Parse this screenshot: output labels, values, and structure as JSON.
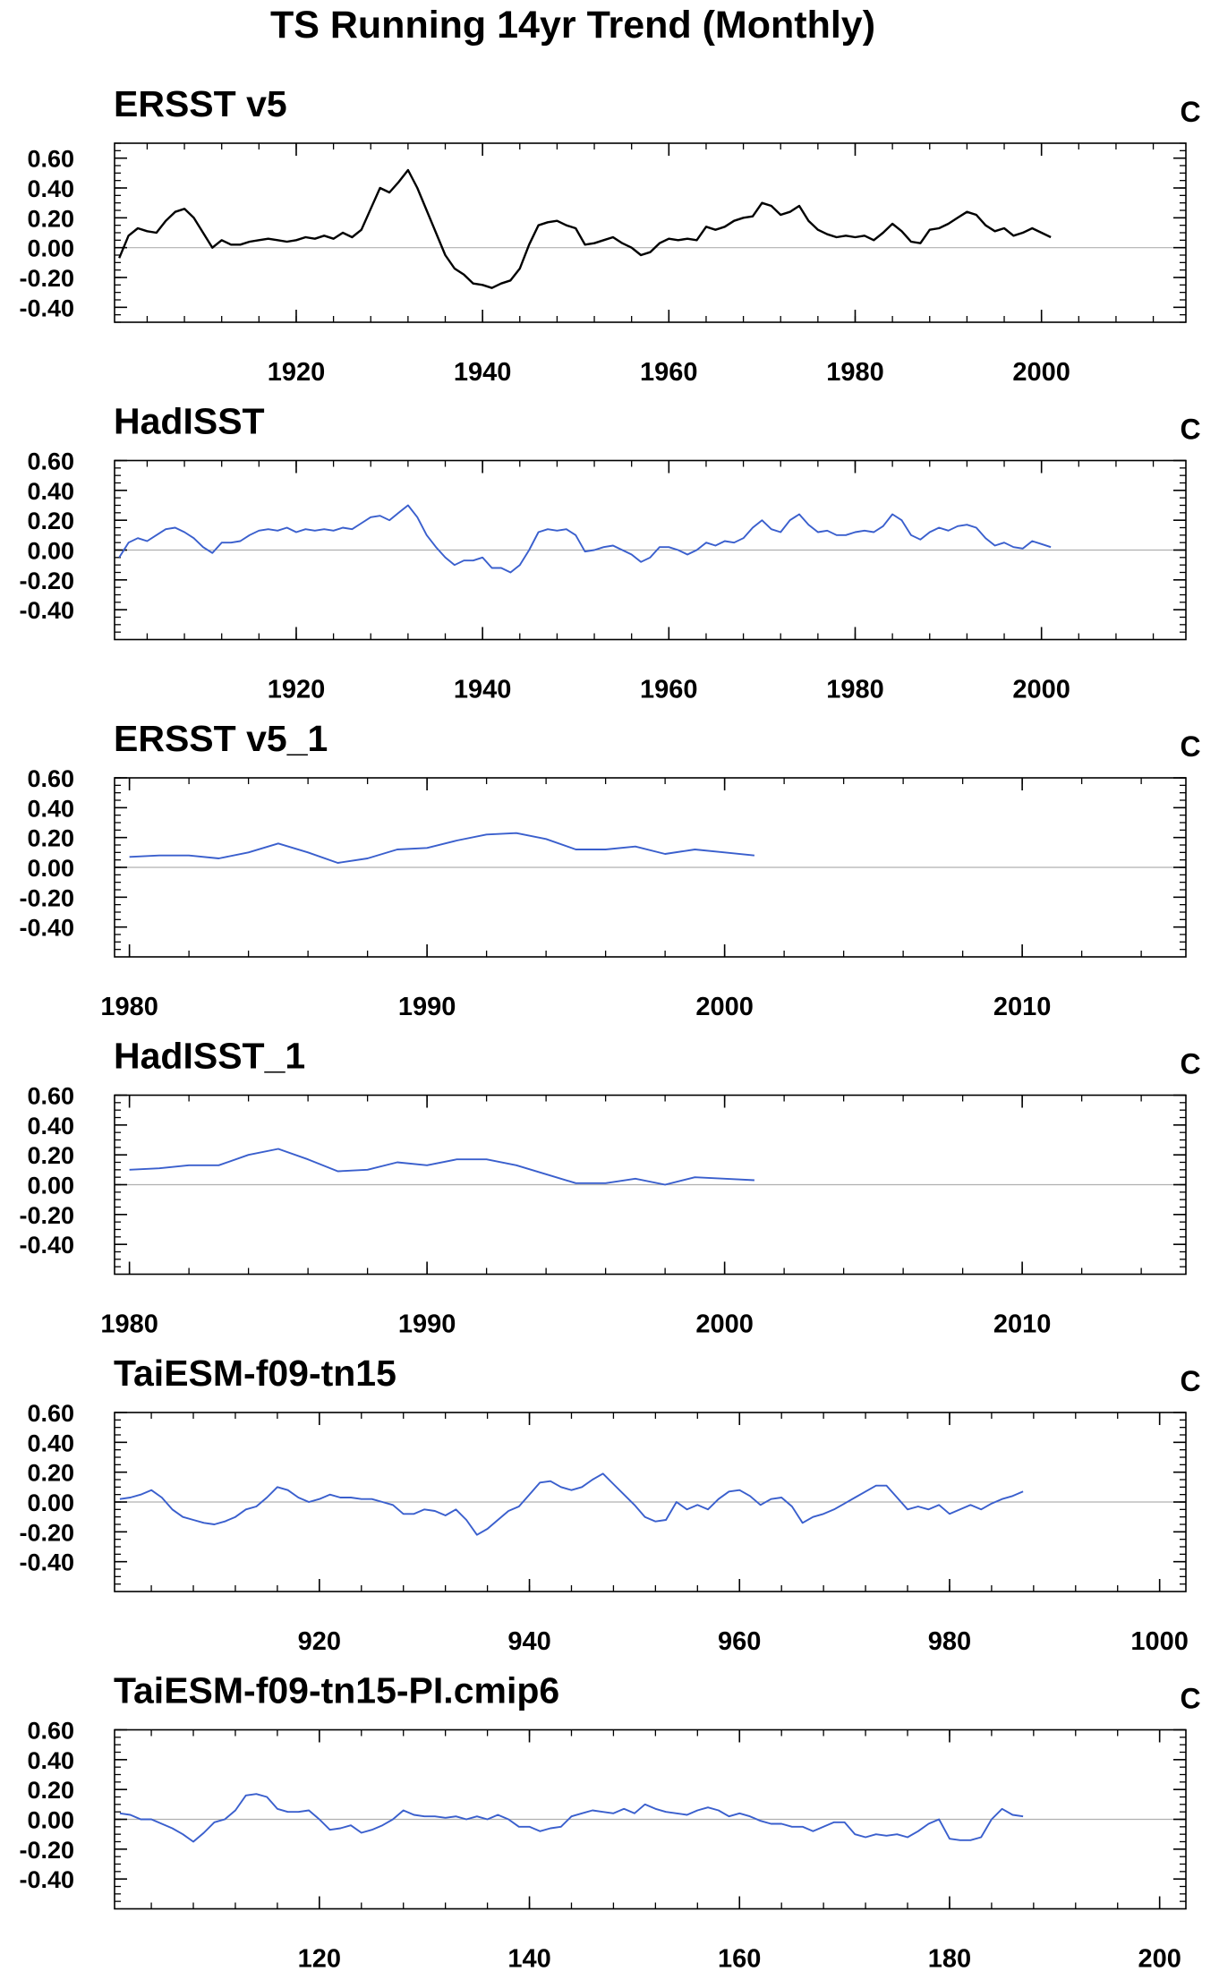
{
  "figure": {
    "title": "TS Running 14yr Trend (Monthly)"
  },
  "chart_data": [
    {
      "type": "line",
      "title": "ERSST v5",
      "units": "C",
      "ylim": [
        -0.5,
        0.7
      ],
      "yticks": [
        -0.4,
        -0.2,
        0.0,
        0.2,
        0.4,
        0.6
      ],
      "ytick_labels": [
        "-0.40",
        "-0.20",
        "0.00",
        "0.20",
        "0.40",
        "0.60"
      ],
      "xlim": [
        1900.5,
        2015.5
      ],
      "xticks": [
        1920,
        1940,
        1960,
        1980,
        2000
      ],
      "xtick_labels": [
        "1920",
        "1940",
        "1960",
        "1980",
        "2000"
      ],
      "zero_line": true,
      "series": [
        {
          "color": "#000000",
          "x": [
            1901,
            1902,
            1903,
            1904,
            1905,
            1906,
            1907,
            1908,
            1909,
            1910,
            1911,
            1912,
            1913,
            1914,
            1915,
            1916,
            1917,
            1918,
            1919,
            1920,
            1921,
            1922,
            1923,
            1924,
            1925,
            1926,
            1927,
            1928,
            1929,
            1930,
            1931,
            1932,
            1933,
            1934,
            1935,
            1936,
            1937,
            1938,
            1939,
            1940,
            1941,
            1942,
            1943,
            1944,
            1945,
            1946,
            1947,
            1948,
            1949,
            1950,
            1951,
            1952,
            1953,
            1954,
            1955,
            1956,
            1957,
            1958,
            1959,
            1960,
            1961,
            1962,
            1963,
            1964,
            1965,
            1966,
            1967,
            1968,
            1969,
            1970,
            1971,
            1972,
            1973,
            1974,
            1975,
            1976,
            1977,
            1978,
            1979,
            1980,
            1981,
            1982,
            1983,
            1984,
            1985,
            1986,
            1987,
            1988,
            1989,
            1990,
            1991,
            1992,
            1993,
            1994,
            1995,
            1996,
            1997,
            1998,
            1999,
            2000,
            2001
          ],
          "y": [
            -0.07,
            0.08,
            0.13,
            0.11,
            0.1,
            0.18,
            0.24,
            0.26,
            0.2,
            0.1,
            0.0,
            0.05,
            0.02,
            0.02,
            0.04,
            0.05,
            0.06,
            0.05,
            0.04,
            0.05,
            0.07,
            0.06,
            0.08,
            0.06,
            0.1,
            0.07,
            0.12,
            0.26,
            0.4,
            0.37,
            0.44,
            0.52,
            0.4,
            0.25,
            0.1,
            -0.05,
            -0.14,
            -0.18,
            -0.24,
            -0.25,
            -0.27,
            -0.24,
            -0.22,
            -0.14,
            0.02,
            0.15,
            0.17,
            0.18,
            0.15,
            0.13,
            0.02,
            0.03,
            0.05,
            0.07,
            0.03,
            0.0,
            -0.05,
            -0.03,
            0.03,
            0.06,
            0.05,
            0.06,
            0.05,
            0.14,
            0.12,
            0.14,
            0.18,
            0.2,
            0.21,
            0.3,
            0.28,
            0.22,
            0.24,
            0.28,
            0.18,
            0.12,
            0.09,
            0.07,
            0.08,
            0.07,
            0.08,
            0.05,
            0.1,
            0.16,
            0.11,
            0.04,
            0.03,
            0.12,
            0.13,
            0.16,
            0.2,
            0.24,
            0.22,
            0.15,
            0.11,
            0.13,
            0.08,
            0.1,
            0.13,
            0.1,
            0.07
          ]
        }
      ]
    },
    {
      "type": "line",
      "title": "HadISST",
      "units": "C",
      "ylim": [
        -0.6,
        0.6
      ],
      "yticks": [
        -0.4,
        -0.2,
        0.0,
        0.2,
        0.4,
        0.6
      ],
      "ytick_labels": [
        "-0.40",
        "-0.20",
        "0.00",
        "0.20",
        "0.40",
        "0.60"
      ],
      "xlim": [
        1900.5,
        2015.5
      ],
      "xticks": [
        1920,
        1940,
        1960,
        1980,
        2000
      ],
      "xtick_labels": [
        "1920",
        "1940",
        "1960",
        "1980",
        "2000"
      ],
      "zero_line": true,
      "series": [
        {
          "color": "#3a5fcd",
          "x": [
            1901,
            1902,
            1903,
            1904,
            1905,
            1906,
            1907,
            1908,
            1909,
            1910,
            1911,
            1912,
            1913,
            1914,
            1915,
            1916,
            1917,
            1918,
            1919,
            1920,
            1921,
            1922,
            1923,
            1924,
            1925,
            1926,
            1927,
            1928,
            1929,
            1930,
            1931,
            1932,
            1933,
            1934,
            1935,
            1936,
            1937,
            1938,
            1939,
            1940,
            1941,
            1942,
            1943,
            1944,
            1945,
            1946,
            1947,
            1948,
            1949,
            1950,
            1951,
            1952,
            1953,
            1954,
            1955,
            1956,
            1957,
            1958,
            1959,
            1960,
            1961,
            1962,
            1963,
            1964,
            1965,
            1966,
            1967,
            1968,
            1969,
            1970,
            1971,
            1972,
            1973,
            1974,
            1975,
            1976,
            1977,
            1978,
            1979,
            1980,
            1981,
            1982,
            1983,
            1984,
            1985,
            1986,
            1987,
            1988,
            1989,
            1990,
            1991,
            1992,
            1993,
            1994,
            1995,
            1996,
            1997,
            1998,
            1999,
            2000,
            2001
          ],
          "y": [
            -0.05,
            0.05,
            0.08,
            0.06,
            0.1,
            0.14,
            0.15,
            0.12,
            0.08,
            0.02,
            -0.02,
            0.05,
            0.05,
            0.06,
            0.1,
            0.13,
            0.14,
            0.13,
            0.15,
            0.12,
            0.14,
            0.13,
            0.14,
            0.13,
            0.15,
            0.14,
            0.18,
            0.22,
            0.23,
            0.2,
            0.25,
            0.3,
            0.22,
            0.1,
            0.02,
            -0.05,
            -0.1,
            -0.07,
            -0.07,
            -0.05,
            -0.12,
            -0.12,
            -0.15,
            -0.1,
            0.0,
            0.12,
            0.14,
            0.13,
            0.14,
            0.1,
            -0.01,
            0.0,
            0.02,
            0.03,
            0.0,
            -0.03,
            -0.08,
            -0.05,
            0.02,
            0.02,
            0.0,
            -0.03,
            0.0,
            0.05,
            0.03,
            0.06,
            0.05,
            0.08,
            0.15,
            0.2,
            0.14,
            0.12,
            0.2,
            0.24,
            0.17,
            0.12,
            0.13,
            0.1,
            0.1,
            0.12,
            0.13,
            0.12,
            0.16,
            0.24,
            0.2,
            0.1,
            0.07,
            0.12,
            0.15,
            0.13,
            0.16,
            0.17,
            0.15,
            0.08,
            0.03,
            0.05,
            0.02,
            0.01,
            0.06,
            0.04,
            0.02
          ]
        }
      ]
    },
    {
      "type": "line",
      "title": "ERSST v5_1",
      "units": "C",
      "ylim": [
        -0.6,
        0.6
      ],
      "yticks": [
        -0.4,
        -0.2,
        0.0,
        0.2,
        0.4,
        0.6
      ],
      "ytick_labels": [
        "-0.40",
        "-0.20",
        "0.00",
        "0.20",
        "0.40",
        "0.60"
      ],
      "xlim": [
        1979.5,
        2015.5
      ],
      "xticks": [
        1980,
        1990,
        2000,
        2010
      ],
      "xtick_labels": [
        "1980",
        "1990",
        "2000",
        "2010"
      ],
      "zero_line": true,
      "series": [
        {
          "color": "#3a5fcd",
          "x": [
            1980,
            1981,
            1982,
            1983,
            1984,
            1985,
            1986,
            1987,
            1988,
            1989,
            1990,
            1991,
            1992,
            1993,
            1994,
            1995,
            1996,
            1997,
            1998,
            1999,
            2000,
            2001
          ],
          "y": [
            0.07,
            0.08,
            0.08,
            0.06,
            0.1,
            0.16,
            0.1,
            0.03,
            0.06,
            0.12,
            0.13,
            0.18,
            0.22,
            0.23,
            0.19,
            0.12,
            0.12,
            0.14,
            0.09,
            0.12,
            0.1,
            0.08
          ]
        }
      ]
    },
    {
      "type": "line",
      "title": "HadISST_1",
      "units": "C",
      "ylim": [
        -0.6,
        0.6
      ],
      "yticks": [
        -0.4,
        -0.2,
        0.0,
        0.2,
        0.4,
        0.6
      ],
      "ytick_labels": [
        "-0.40",
        "-0.20",
        "0.00",
        "0.20",
        "0.40",
        "0.60"
      ],
      "xlim": [
        1979.5,
        2015.5
      ],
      "xticks": [
        1980,
        1990,
        2000,
        2010
      ],
      "xtick_labels": [
        "1980",
        "1990",
        "2000",
        "2010"
      ],
      "zero_line": true,
      "series": [
        {
          "color": "#3a5fcd",
          "x": [
            1980,
            1981,
            1982,
            1983,
            1984,
            1985,
            1986,
            1987,
            1988,
            1989,
            1990,
            1991,
            1992,
            1993,
            1994,
            1995,
            1996,
            1997,
            1998,
            1999,
            2000,
            2001
          ],
          "y": [
            0.1,
            0.11,
            0.13,
            0.13,
            0.2,
            0.24,
            0.17,
            0.09,
            0.1,
            0.15,
            0.13,
            0.17,
            0.17,
            0.13,
            0.07,
            0.01,
            0.01,
            0.04,
            0.0,
            0.05,
            0.04,
            0.03
          ]
        }
      ]
    },
    {
      "type": "line",
      "title": "TaiESM-f09-tn15",
      "units": "C",
      "ylim": [
        -0.6,
        0.6
      ],
      "yticks": [
        -0.4,
        -0.2,
        0.0,
        0.2,
        0.4,
        0.6
      ],
      "ytick_labels": [
        "-0.40",
        "-0.20",
        "0.00",
        "0.20",
        "0.40",
        "0.60"
      ],
      "xlim": [
        900.5,
        1002.5
      ],
      "xticks": [
        920,
        940,
        960,
        980,
        1000
      ],
      "xtick_labels": [
        "920",
        "940",
        "960",
        "980",
        "1000"
      ],
      "zero_line": true,
      "series": [
        {
          "color": "#3a5fcd",
          "x": [
            901,
            902,
            903,
            904,
            905,
            906,
            907,
            908,
            909,
            910,
            911,
            912,
            913,
            914,
            915,
            916,
            917,
            918,
            919,
            920,
            921,
            922,
            923,
            924,
            925,
            926,
            927,
            928,
            929,
            930,
            931,
            932,
            933,
            934,
            935,
            936,
            937,
            938,
            939,
            940,
            941,
            942,
            943,
            944,
            945,
            946,
            947,
            948,
            949,
            950,
            951,
            952,
            953,
            954,
            955,
            956,
            957,
            958,
            959,
            960,
            961,
            962,
            963,
            964,
            965,
            966,
            967,
            968,
            969,
            970,
            971,
            972,
            973,
            974,
            975,
            976,
            977,
            978,
            979,
            980,
            981,
            982,
            983,
            984,
            985,
            986,
            987
          ],
          "y": [
            0.02,
            0.03,
            0.05,
            0.08,
            0.03,
            -0.05,
            -0.1,
            -0.12,
            -0.14,
            -0.15,
            -0.13,
            -0.1,
            -0.05,
            -0.03,
            0.03,
            0.1,
            0.08,
            0.03,
            0.0,
            0.02,
            0.05,
            0.03,
            0.03,
            0.02,
            0.02,
            0.0,
            -0.02,
            -0.08,
            -0.08,
            -0.05,
            -0.06,
            -0.09,
            -0.05,
            -0.12,
            -0.22,
            -0.18,
            -0.12,
            -0.06,
            -0.03,
            0.05,
            0.13,
            0.14,
            0.1,
            0.08,
            0.1,
            0.15,
            0.19,
            0.12,
            0.05,
            -0.02,
            -0.1,
            -0.13,
            -0.12,
            0.0,
            -0.05,
            -0.02,
            -0.05,
            0.02,
            0.07,
            0.08,
            0.04,
            -0.02,
            0.02,
            0.03,
            -0.03,
            -0.14,
            -0.1,
            -0.08,
            -0.05,
            -0.01,
            0.03,
            0.07,
            0.11,
            0.11,
            0.03,
            -0.05,
            -0.03,
            -0.05,
            -0.02,
            -0.08,
            -0.05,
            -0.02,
            -0.05,
            -0.01,
            0.02,
            0.04,
            0.07
          ]
        }
      ]
    },
    {
      "type": "line",
      "title": "TaiESM-f09-tn15-PI.cmip6",
      "units": "C",
      "ylim": [
        -0.6,
        0.6
      ],
      "yticks": [
        -0.4,
        -0.2,
        0.0,
        0.2,
        0.4,
        0.6
      ],
      "ytick_labels": [
        "-0.40",
        "-0.20",
        "0.00",
        "0.20",
        "0.40",
        "0.60"
      ],
      "xlim": [
        100.5,
        202.5
      ],
      "xticks": [
        120,
        140,
        160,
        180,
        200
      ],
      "xtick_labels": [
        "120",
        "140",
        "160",
        "180",
        "200"
      ],
      "zero_line": true,
      "series": [
        {
          "color": "#3a5fcd",
          "x": [
            101,
            102,
            103,
            104,
            105,
            106,
            107,
            108,
            109,
            110,
            111,
            112,
            113,
            114,
            115,
            116,
            117,
            118,
            119,
            120,
            121,
            122,
            123,
            124,
            125,
            126,
            127,
            128,
            129,
            130,
            131,
            132,
            133,
            134,
            135,
            136,
            137,
            138,
            139,
            140,
            141,
            142,
            143,
            144,
            145,
            146,
            147,
            148,
            149,
            150,
            151,
            152,
            153,
            154,
            155,
            156,
            157,
            158,
            159,
            160,
            161,
            162,
            163,
            164,
            165,
            166,
            167,
            168,
            169,
            170,
            171,
            172,
            173,
            174,
            175,
            176,
            177,
            178,
            179,
            180,
            181,
            182,
            183,
            184,
            185,
            186,
            187
          ],
          "y": [
            0.04,
            0.03,
            0.0,
            0.0,
            -0.03,
            -0.06,
            -0.1,
            -0.15,
            -0.09,
            -0.02,
            0.0,
            0.06,
            0.16,
            0.17,
            0.15,
            0.07,
            0.05,
            0.05,
            0.06,
            0.0,
            -0.07,
            -0.06,
            -0.04,
            -0.09,
            -0.07,
            -0.04,
            0.0,
            0.06,
            0.03,
            0.02,
            0.02,
            0.01,
            0.02,
            0.0,
            0.02,
            0.0,
            0.03,
            0.0,
            -0.05,
            -0.05,
            -0.08,
            -0.06,
            -0.05,
            0.02,
            0.04,
            0.06,
            0.05,
            0.04,
            0.07,
            0.04,
            0.1,
            0.07,
            0.05,
            0.04,
            0.03,
            0.06,
            0.08,
            0.06,
            0.02,
            0.04,
            0.02,
            -0.01,
            -0.03,
            -0.03,
            -0.05,
            -0.05,
            -0.08,
            -0.05,
            -0.02,
            -0.02,
            -0.1,
            -0.12,
            -0.1,
            -0.11,
            -0.1,
            -0.12,
            -0.08,
            -0.03,
            0.0,
            -0.13,
            -0.14,
            -0.14,
            -0.12,
            0.0,
            0.07,
            0.03,
            0.02
          ]
        }
      ]
    }
  ]
}
